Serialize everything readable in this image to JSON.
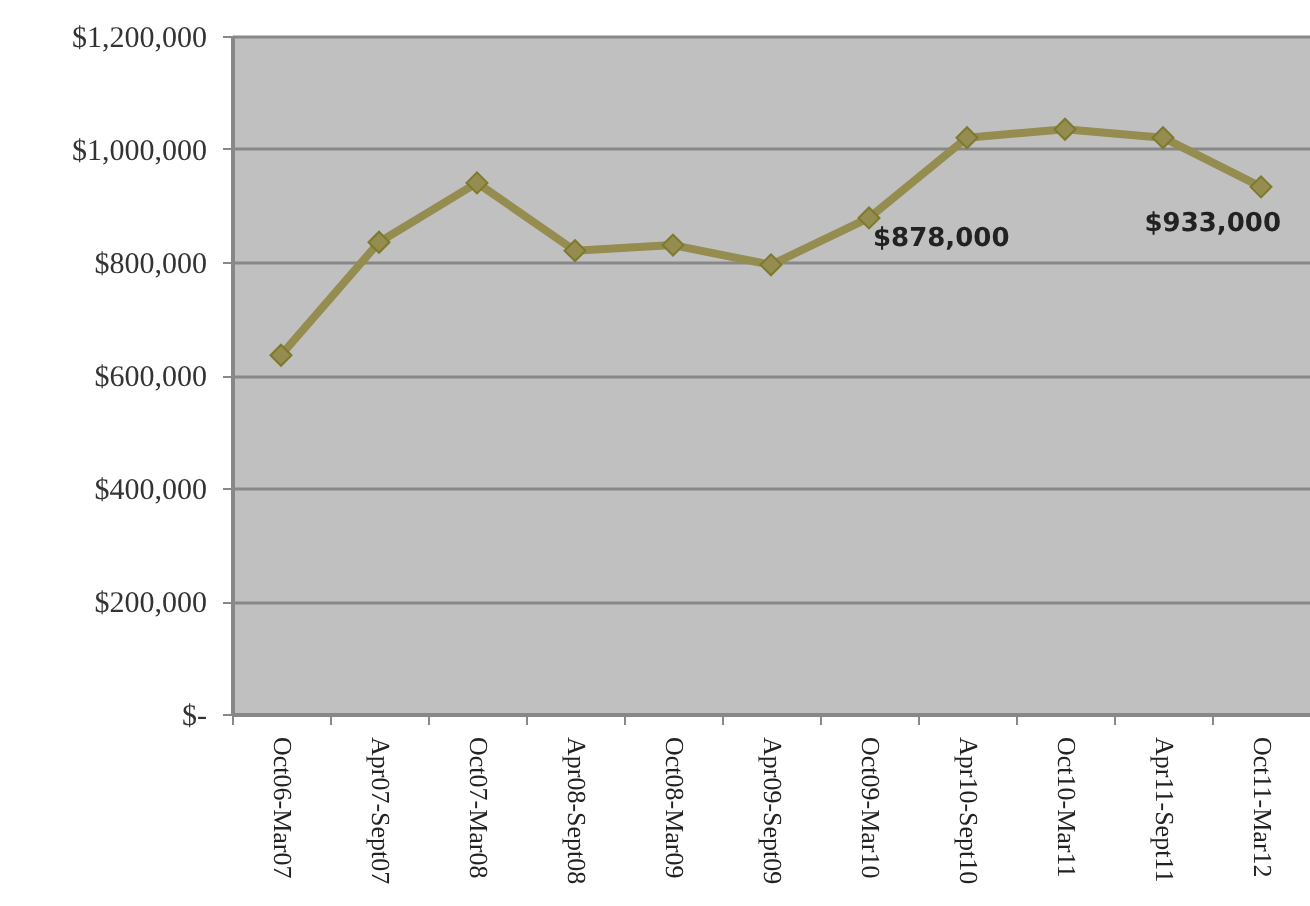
{
  "chart_data": {
    "type": "line",
    "categories": [
      "Oct06-Mar07",
      "Apr07-Sept07",
      "Oct07-Mar08",
      "Apr08-Sept08",
      "Oct08-Mar09",
      "Apr09-Sept09",
      "Oct09-Mar10",
      "Apr10-Sept10",
      "Oct10-Mar11",
      "Apr11-Sept11",
      "Oct11-Mar12"
    ],
    "series": [
      {
        "color": "#958c4f",
        "values": [
          635000,
          835000,
          940000,
          820000,
          830000,
          795000,
          878000,
          1020000,
          1035000,
          1020000,
          933000
        ],
        "value_labels": [
          null,
          null,
          null,
          null,
          null,
          null,
          "$878,000",
          null,
          null,
          null,
          "$933,000"
        ]
      }
    ],
    "ylim": [
      0,
      1200000
    ],
    "yticks": [
      {
        "value": 0,
        "label": "$-"
      },
      {
        "value": 200000,
        "label": "$200,000"
      },
      {
        "value": 400000,
        "label": "$400,000"
      },
      {
        "value": 600000,
        "label": "$600,000"
      },
      {
        "value": 800000,
        "label": "$800,000"
      },
      {
        "value": 1000000,
        "label": "$1,000,000"
      },
      {
        "value": 1200000,
        "label": "$1,200,000"
      }
    ],
    "grid": "y",
    "marker": "diamond",
    "line_style": "solid"
  }
}
